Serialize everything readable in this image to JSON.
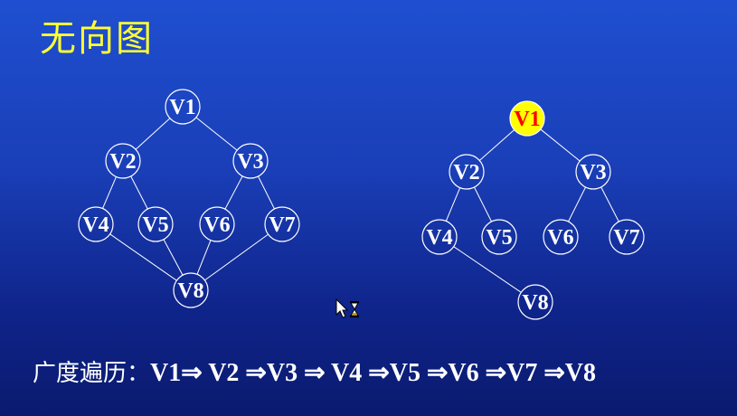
{
  "title": "无向图",
  "graph_left": {
    "nodes": [
      "V1",
      "V2",
      "V3",
      "V4",
      "V5",
      "V6",
      "V7",
      "V8"
    ],
    "edges": [
      [
        "V1",
        "V2"
      ],
      [
        "V1",
        "V3"
      ],
      [
        "V2",
        "V4"
      ],
      [
        "V2",
        "V5"
      ],
      [
        "V3",
        "V6"
      ],
      [
        "V3",
        "V7"
      ],
      [
        "V4",
        "V8"
      ],
      [
        "V5",
        "V8"
      ],
      [
        "V6",
        "V8"
      ],
      [
        "V7",
        "V8"
      ]
    ]
  },
  "graph_right": {
    "nodes": [
      "V1",
      "V2",
      "V3",
      "V4",
      "V5",
      "V6",
      "V7",
      "V8"
    ],
    "edges": [
      [
        "V1",
        "V2"
      ],
      [
        "V1",
        "V3"
      ],
      [
        "V2",
        "V4"
      ],
      [
        "V2",
        "V5"
      ],
      [
        "V3",
        "V6"
      ],
      [
        "V3",
        "V7"
      ],
      [
        "V4",
        "V8"
      ]
    ],
    "highlighted": "V1"
  },
  "colors": {
    "highlight_fill": "#ffff00",
    "highlight_text": "#ff0000",
    "title": "#ffff33"
  },
  "traversal": {
    "prefix": "广度遍历：",
    "sequence": "V1⇒ V2 ⇒V3 ⇒ V4 ⇒V5 ⇒V6 ⇒V7 ⇒V8"
  },
  "cursor_icon": "busy-arrow-hourglass-icon"
}
